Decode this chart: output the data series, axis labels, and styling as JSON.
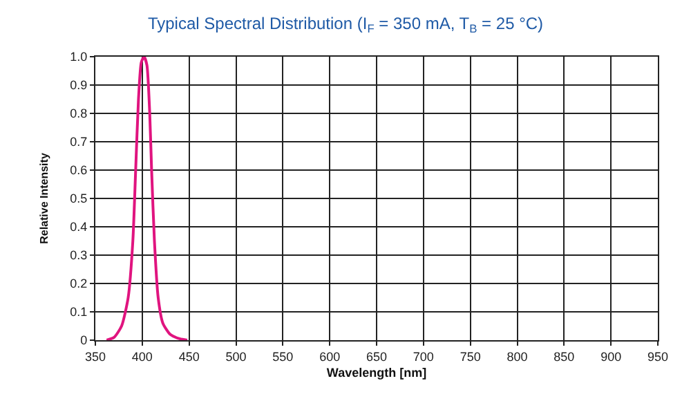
{
  "chart_data": {
    "type": "line",
    "title": "Typical Spectral Distribution (I$_{F}$ = 350 mA, T$_{B}$ = 25 °C)",
    "xlabel": "Wavelength [nm]",
    "ylabel": "Relative Intensity",
    "series": [
      {
        "color": "#e0147f",
        "x": [
          362,
          370,
          378,
          385,
          390,
          393,
          396,
          399,
          402,
          405,
          408,
          410,
          413,
          417,
          422,
          430,
          440,
          448
        ],
        "values": [
          0,
          0.01,
          0.05,
          0.15,
          0.35,
          0.6,
          0.85,
          0.98,
          1.0,
          0.97,
          0.8,
          0.6,
          0.35,
          0.15,
          0.06,
          0.02,
          0.005,
          0
        ]
      }
    ],
    "xlim": [
      350,
      950
    ],
    "xticks": [
      350,
      400,
      450,
      500,
      550,
      600,
      650,
      700,
      750,
      800,
      850,
      900,
      950
    ],
    "ylim": [
      0,
      1.0
    ],
    "yticks": [
      {
        "value": 0,
        "label": "0"
      },
      0.1,
      0.2,
      0.3,
      0.4,
      0.5,
      0.6,
      0.7,
      0.8,
      0.9,
      {
        "value": 1.0,
        "label": "1.0"
      }
    ],
    "grid": true,
    "legend": false,
    "line_style": "solid",
    "marker": "none"
  }
}
